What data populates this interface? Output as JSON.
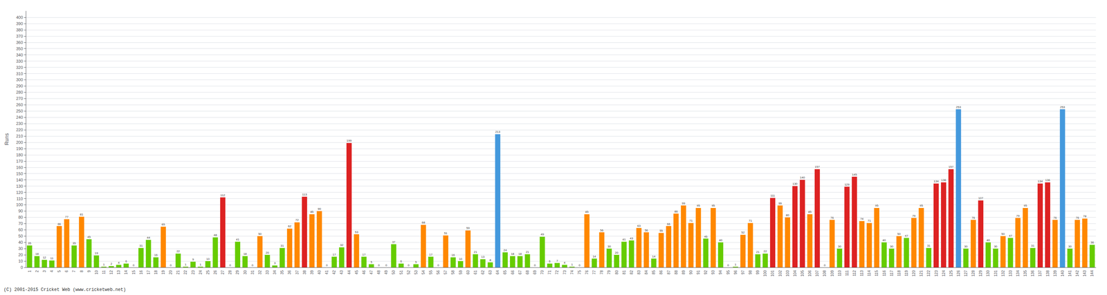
{
  "chart_data": {
    "type": "bar",
    "ylabel": "Runs",
    "annotations": [
      {
        "text": "(C) 2001-2015 Cricket Web (www.cricketweb.net)"
      }
    ],
    "categories": [
      1,
      2,
      3,
      4,
      5,
      6,
      7,
      8,
      9,
      10,
      11,
      12,
      13,
      14,
      15,
      16,
      17,
      18,
      19,
      20,
      21,
      22,
      23,
      24,
      25,
      26,
      27,
      28,
      29,
      30,
      31,
      32,
      33,
      34,
      35,
      36,
      37,
      38,
      39,
      40,
      41,
      42,
      43,
      44,
      45,
      46,
      47,
      48,
      49,
      50,
      51,
      52,
      53,
      54,
      55,
      56,
      57,
      58,
      59,
      60,
      61,
      62,
      63,
      64,
      65,
      66,
      67,
      68,
      69,
      70,
      71,
      72,
      73,
      74,
      75,
      76,
      77,
      78,
      79,
      80,
      81,
      82,
      83,
      84,
      85,
      86,
      87,
      88,
      89,
      90,
      91,
      92,
      93,
      94,
      95,
      96,
      97,
      98,
      99,
      100,
      101,
      102,
      103,
      104,
      105,
      106,
      107,
      108,
      109,
      110,
      111,
      112,
      113,
      114,
      115,
      116,
      117,
      118,
      119,
      120,
      121,
      122,
      123,
      124,
      125,
      126,
      127,
      128,
      129,
      130,
      131,
      132,
      133,
      134,
      135,
      136,
      137,
      138,
      139,
      140,
      141,
      142,
      143,
      144
    ],
    "values": [
      35,
      18,
      12,
      11,
      66,
      77,
      35,
      81,
      45,
      19,
      1,
      2,
      4,
      6,
      0,
      31,
      44,
      16,
      65,
      0,
      22,
      1,
      9,
      1,
      10,
      48,
      112,
      0,
      41,
      18,
      0,
      50,
      20,
      3,
      31,
      62,
      72,
      113,
      85,
      90,
      0,
      17,
      32,
      199,
      53,
      17,
      5,
      0,
      0,
      37,
      6,
      0,
      5,
      68,
      17,
      0,
      51,
      16,
      10,
      59,
      21,
      13,
      8,
      213,
      24,
      18,
      18,
      21,
      0,
      49,
      6,
      7,
      4,
      1,
      0,
      85,
      14,
      56,
      30,
      20,
      41,
      43,
      63,
      56,
      14,
      55,
      66,
      86,
      99,
      71,
      95,
      46,
      95,
      40,
      0,
      1,
      52,
      71,
      21,
      22,
      111,
      99,
      80,
      130,
      140,
      85,
      157,
      0,
      76,
      30,
      129,
      145,
      74,
      71,
      95,
      40,
      30,
      50,
      47,
      79,
      95,
      31,
      134,
      136,
      157,
      253,
      30,
      76,
      107,
      40,
      30,
      50,
      47,
      79,
      95,
      31,
      134,
      136,
      76,
      253,
      30,
      76,
      78,
      36
    ],
    "colors": [
      "#66CC00",
      "#66CC00",
      "#66CC00",
      "#66CC00",
      "#FF8800",
      "#FF8800",
      "#66CC00",
      "#FF8800",
      "#66CC00",
      "#66CC00",
      "#66CC00",
      "#66CC00",
      "#66CC00",
      "#66CC00",
      "#66CC00",
      "#66CC00",
      "#66CC00",
      "#66CC00",
      "#FF8800",
      "#66CC00",
      "#66CC00",
      "#66CC00",
      "#66CC00",
      "#66CC00",
      "#66CC00",
      "#66CC00",
      "#DD2222",
      "#66CC00",
      "#66CC00",
      "#66CC00",
      "#66CC00",
      "#FF8800",
      "#66CC00",
      "#66CC00",
      "#66CC00",
      "#FF8800",
      "#FF8800",
      "#DD2222",
      "#FF8800",
      "#FF8800",
      "#66CC00",
      "#66CC00",
      "#66CC00",
      "#DD2222",
      "#FF8800",
      "#66CC00",
      "#66CC00",
      "#66CC00",
      "#66CC00",
      "#66CC00",
      "#66CC00",
      "#66CC00",
      "#66CC00",
      "#FF8800",
      "#66CC00",
      "#66CC00",
      "#FF8800",
      "#66CC00",
      "#66CC00",
      "#FF8800",
      "#66CC00",
      "#66CC00",
      "#66CC00",
      "#4499DD",
      "#66CC00",
      "#66CC00",
      "#66CC00",
      "#66CC00",
      "#66CC00",
      "#66CC00",
      "#66CC00",
      "#66CC00",
      "#66CC00",
      "#66CC00",
      "#66CC00",
      "#FF8800",
      "#66CC00",
      "#FF8800",
      "#66CC00",
      "#66CC00",
      "#66CC00",
      "#66CC00",
      "#FF8800",
      "#FF8800",
      "#66CC00",
      "#FF8800",
      "#FF8800",
      "#FF8800",
      "#FF8800",
      "#FF8800",
      "#FF8800",
      "#66CC00",
      "#FF8800",
      "#66CC00",
      "#66CC00",
      "#66CC00",
      "#FF8800",
      "#FF8800",
      "#66CC00",
      "#66CC00",
      "#DD2222",
      "#FF8800",
      "#FF8800",
      "#DD2222",
      "#DD2222",
      "#FF8800",
      "#DD2222",
      "#66CC00",
      "#FF8800",
      "#66CC00",
      "#DD2222",
      "#DD2222",
      "#FF8800",
      "#FF8800",
      "#FF8800",
      "#66CC00",
      "#66CC00",
      "#FF8800",
      "#66CC00",
      "#FF8800",
      "#FF8800",
      "#66CC00",
      "#DD2222",
      "#DD2222",
      "#DD2222",
      "#4499DD",
      "#66CC00",
      "#FF8800",
      "#DD2222",
      "#66CC00",
      "#66CC00",
      "#FF8800",
      "#66CC00",
      "#FF8800",
      "#FF8800",
      "#66CC00",
      "#DD2222",
      "#DD2222",
      "#FF8800",
      "#4499DD",
      "#66CC00",
      "#FF8800",
      "#FF8800",
      "#66CC00"
    ],
    "ylim": [
      0,
      410
    ],
    "yticks": [
      0,
      10,
      20,
      30,
      40,
      50,
      60,
      70,
      80,
      90,
      100,
      110,
      120,
      130,
      140,
      150,
      160,
      170,
      180,
      190,
      200,
      210,
      220,
      230,
      240,
      250,
      260,
      270,
      280,
      290,
      300,
      310,
      320,
      330,
      340,
      350,
      360,
      370,
      380,
      390,
      400
    ],
    "grid": true,
    "data_labels": true
  }
}
